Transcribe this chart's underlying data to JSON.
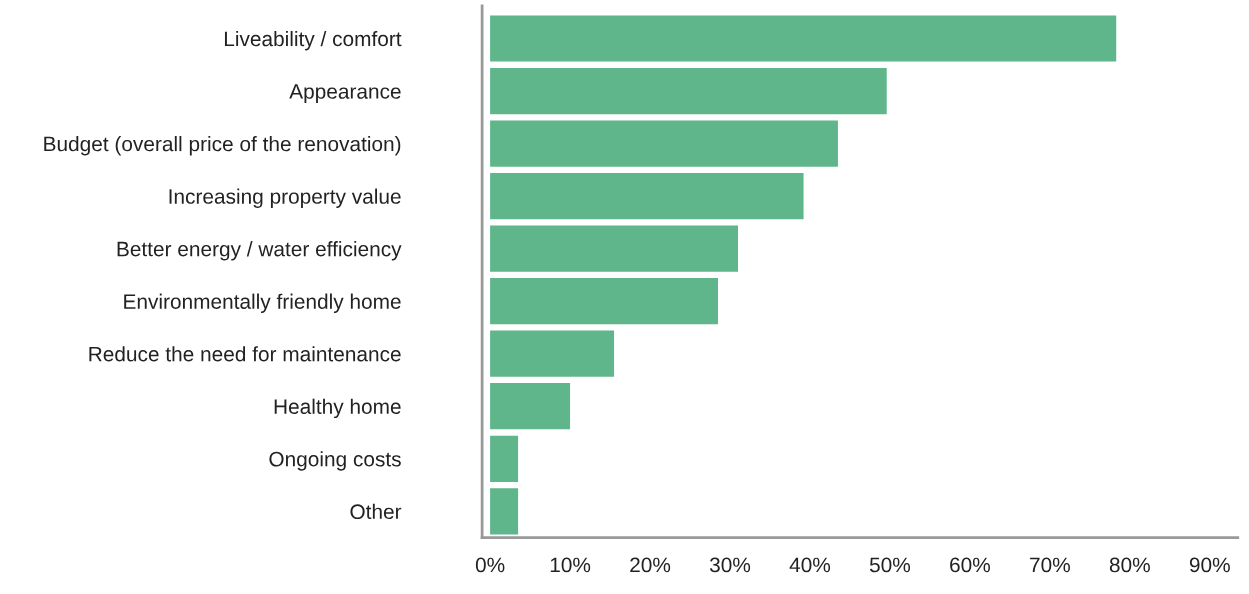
{
  "chart_data": {
    "type": "bar",
    "orientation": "horizontal",
    "categories": [
      "Liveability / comfort",
      "Appearance",
      "Budget (overall price of the renovation)",
      "Increasing property value",
      "Better energy / water efficiency",
      "Environmentally friendly home",
      "Reduce the need for maintenance",
      "Healthy home",
      "Ongoing costs",
      "Other"
    ],
    "values": [
      78.3,
      49.6,
      43.5,
      39.2,
      31.0,
      28.5,
      15.5,
      10.0,
      3.5,
      3.5
    ],
    "color": "#5fb68b",
    "xlim": [
      -1,
      93.5
    ],
    "xticks": [
      {
        "value": 0,
        "label": "0%"
      },
      {
        "value": 10,
        "label": "10%"
      },
      {
        "value": 20,
        "label": "20%"
      },
      {
        "value": 30,
        "label": "30%"
      },
      {
        "value": 40,
        "label": "40%"
      },
      {
        "value": 50,
        "label": "50%"
      },
      {
        "value": 60,
        "label": "60%"
      },
      {
        "value": 70,
        "label": "70%"
      },
      {
        "value": 80,
        "label": "80%"
      },
      {
        "value": 90,
        "label": "90%"
      }
    ],
    "grid": false,
    "legend": false
  }
}
